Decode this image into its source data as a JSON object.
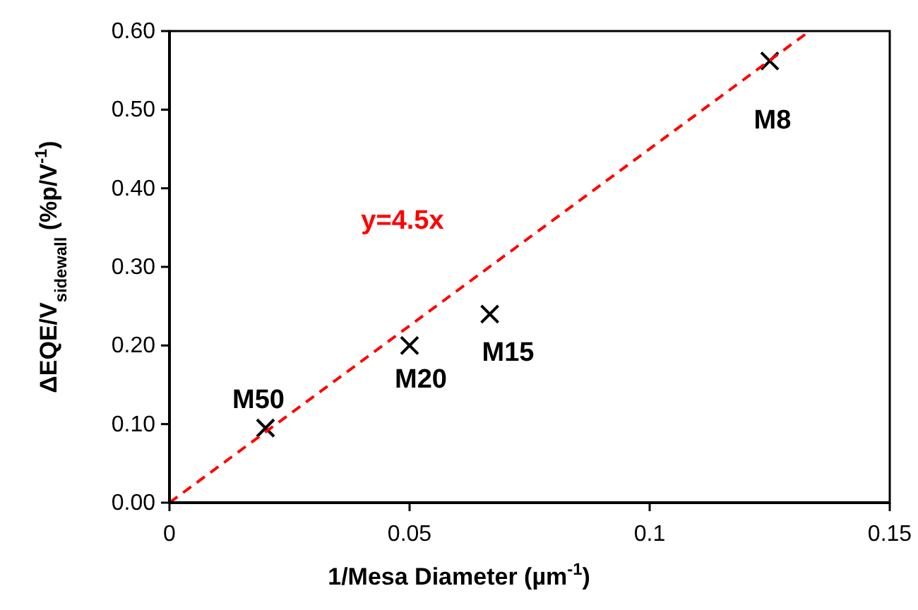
{
  "chart_data": {
    "type": "scatter",
    "xlabel": "1/Mesa Diameter (µm$^{-1}$)",
    "ylabel": "ΔEQE/V$_{sidewall}$ (%p/V$^{-1}$)",
    "xlim": [
      0,
      0.15
    ],
    "xticks": [
      0,
      0.05,
      0.1,
      0.15
    ],
    "ylim": [
      0,
      0.6
    ],
    "yticks": [
      {
        "value": 0,
        "label": "0.00"
      },
      {
        "value": 0.1,
        "label": "0.10"
      },
      {
        "value": 0.2,
        "label": "0.20"
      },
      {
        "value": 0.3,
        "label": "0.30"
      },
      {
        "value": 0.4,
        "label": "0.40"
      },
      {
        "value": 0.5,
        "label": "0.50"
      },
      {
        "value": 0.6,
        "label": "0.60"
      }
    ],
    "grid": false,
    "marker": "cross",
    "series": [
      {
        "color": "#000000",
        "x": [
          0.02,
          0.05,
          0.0667,
          0.125
        ],
        "values": [
          0.095,
          0.2,
          0.24,
          0.562
        ]
      },
      {
        "type": "line",
        "color": "#ff0000",
        "line_style": "dashed",
        "marker": "none",
        "x": [
          0,
          0.1333
        ],
        "values": [
          0,
          0.6
        ]
      }
    ],
    "annotations": [
      {
        "text": "M50",
        "x": 0.02,
        "y": 0.095
      },
      {
        "text": "M20",
        "x": 0.05,
        "y": 0.2
      },
      {
        "text": "M15",
        "x": 0.0667,
        "y": 0.24
      },
      {
        "text": "M8",
        "x": 0.125,
        "y": 0.562
      },
      "y=4.5x"
    ]
  }
}
